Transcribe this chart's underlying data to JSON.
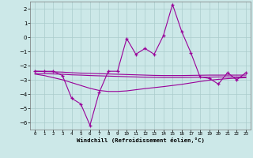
{
  "xlabel": "Windchill (Refroidissement éolien,°C)",
  "x": [
    0,
    1,
    2,
    3,
    4,
    5,
    6,
    7,
    8,
    9,
    10,
    11,
    12,
    13,
    14,
    15,
    16,
    17,
    18,
    19,
    20,
    21,
    22,
    23
  ],
  "line_main": [
    -2.4,
    -2.4,
    -2.4,
    -2.7,
    -4.3,
    -4.7,
    -6.2,
    -3.9,
    -2.4,
    -2.4,
    -0.1,
    -1.2,
    -0.8,
    -1.2,
    0.1,
    2.3,
    0.4,
    -1.1,
    -2.8,
    -2.9,
    -3.3,
    -2.5,
    -3.0,
    -2.5
  ],
  "line_upper_trend": [
    -2.4,
    -2.42,
    -2.44,
    -2.46,
    -2.5,
    -2.53,
    -2.55,
    -2.57,
    -2.59,
    -2.61,
    -2.63,
    -2.65,
    -2.67,
    -2.69,
    -2.7,
    -2.7,
    -2.7,
    -2.69,
    -2.68,
    -2.67,
    -2.67,
    -2.67,
    -2.67,
    -2.67
  ],
  "line_mid_trend": [
    -2.55,
    -2.57,
    -2.59,
    -2.61,
    -2.65,
    -2.67,
    -2.7,
    -2.72,
    -2.74,
    -2.76,
    -2.78,
    -2.8,
    -2.82,
    -2.83,
    -2.84,
    -2.84,
    -2.84,
    -2.83,
    -2.82,
    -2.81,
    -2.8,
    -2.8,
    -2.8,
    -2.8
  ],
  "line_low_trend": [
    -2.6,
    -2.7,
    -2.85,
    -3.0,
    -3.2,
    -3.4,
    -3.6,
    -3.75,
    -3.82,
    -3.82,
    -3.78,
    -3.7,
    -3.62,
    -3.55,
    -3.48,
    -3.4,
    -3.32,
    -3.22,
    -3.12,
    -3.03,
    -2.97,
    -2.92,
    -2.88,
    -2.85
  ],
  "bg_color": "#cce8e8",
  "grid_color": "#aacccc",
  "line_color": "#990099",
  "ylim": [
    -6.5,
    2.5
  ],
  "yticks": [
    -6,
    -5,
    -4,
    -3,
    -2,
    -1,
    0,
    1,
    2
  ],
  "xlim": [
    -0.5,
    23.5
  ]
}
